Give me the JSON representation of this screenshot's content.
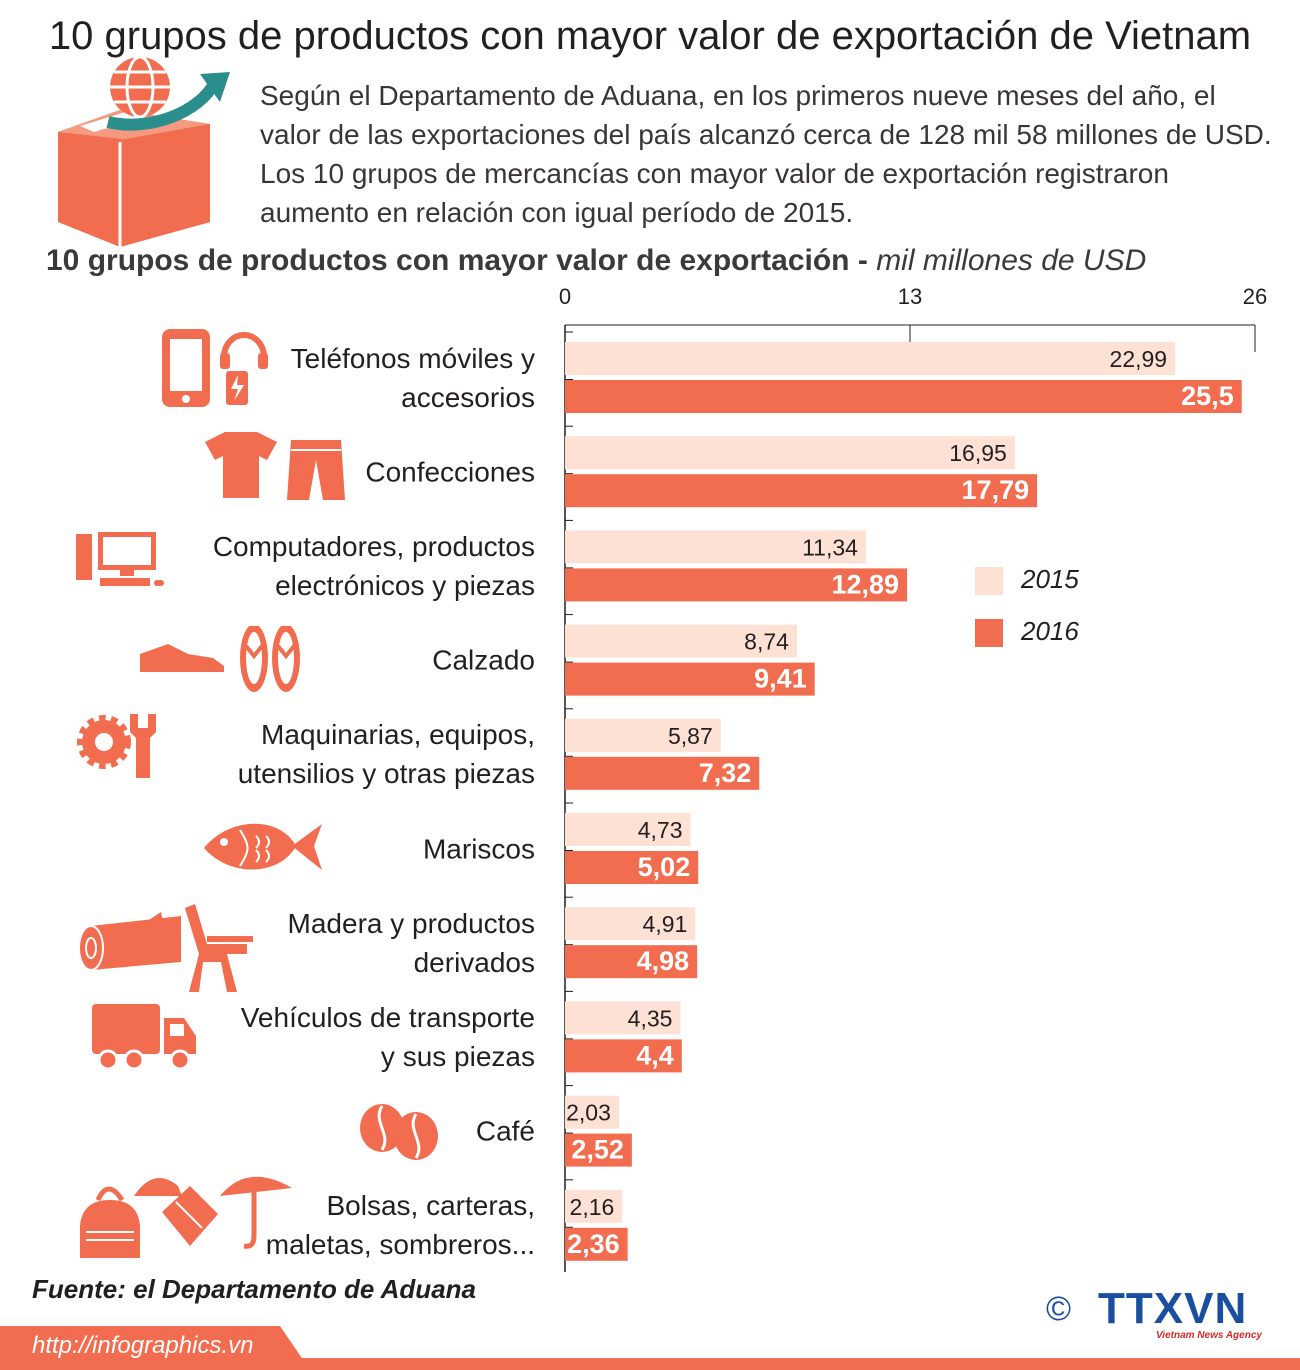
{
  "title": "10 grupos de productos con mayor valor de exportación de Vietnam",
  "intro": "Según el Departamento de Aduana, en los primeros nueve meses del año, el valor de las exportaciones del país alcanzó cerca de 128 mil 58 millones de USD.  Los 10 grupos de mercancías con mayor valor de exportación registraron aumento en relación con igual período de 2015.",
  "colors": {
    "accent": "#f26c4f",
    "light": "#fde1d5"
  },
  "icons": [
    "box-globe-arrow-icon",
    "phone-headset-icon",
    "clothes-icon",
    "computer-icon",
    "shoe-sandal-icon",
    "gear-wrench-icon",
    "fish-icon",
    "log-chair-icon",
    "truck-icon",
    "coffee-bean-icon",
    "bag-hat-umbrella-icon"
  ],
  "chart_data": {
    "type": "bar",
    "orientation": "horizontal",
    "title": "10 grupos de productos con mayor valor de exportación",
    "unit": "mil millones  de USD",
    "xlim": [
      0,
      26
    ],
    "ticks": [
      "0",
      "13",
      "26"
    ],
    "categories": [
      [
        "Teléfonos móviles y",
        "accesorios"
      ],
      [
        "Confecciones"
      ],
      [
        "Computadores, productos",
        "electrónicos y piezas"
      ],
      [
        "Calzado"
      ],
      [
        "Maquinarias, equipos,",
        "utensilios y otras piezas"
      ],
      [
        "Mariscos"
      ],
      [
        "Madera y productos",
        "derivados"
      ],
      [
        "Vehículos de transporte",
        "y sus piezas"
      ],
      [
        "Café"
      ],
      [
        "Bolsas, carteras,",
        "maletas, sombreros..."
      ]
    ],
    "series": [
      {
        "name": "2015",
        "values": [
          22.99,
          16.95,
          11.34,
          8.74,
          5.87,
          4.73,
          4.91,
          4.35,
          2.03,
          2.16
        ],
        "labels": [
          "22,99",
          "16,95",
          "11,34",
          "8,74",
          "5,87",
          "4,73",
          "4,91",
          "4,35",
          "2,03",
          "2,16"
        ]
      },
      {
        "name": "2016",
        "values": [
          25.5,
          17.79,
          12.89,
          9.41,
          7.32,
          5.02,
          4.98,
          4.4,
          2.52,
          2.36
        ],
        "labels": [
          "25,5",
          "17,79",
          "12,89",
          "9,41",
          "7,32",
          "5,02",
          "4,98",
          "4,4",
          "2,52",
          "2,36"
        ]
      }
    ],
    "legend": "right"
  },
  "source": "Fuente: el Departamento de Aduana",
  "url": "http://infographics.vn",
  "logo": {
    "copyright": "©",
    "name": "TTXVN",
    "tagline": "Vietnam News Agency"
  }
}
